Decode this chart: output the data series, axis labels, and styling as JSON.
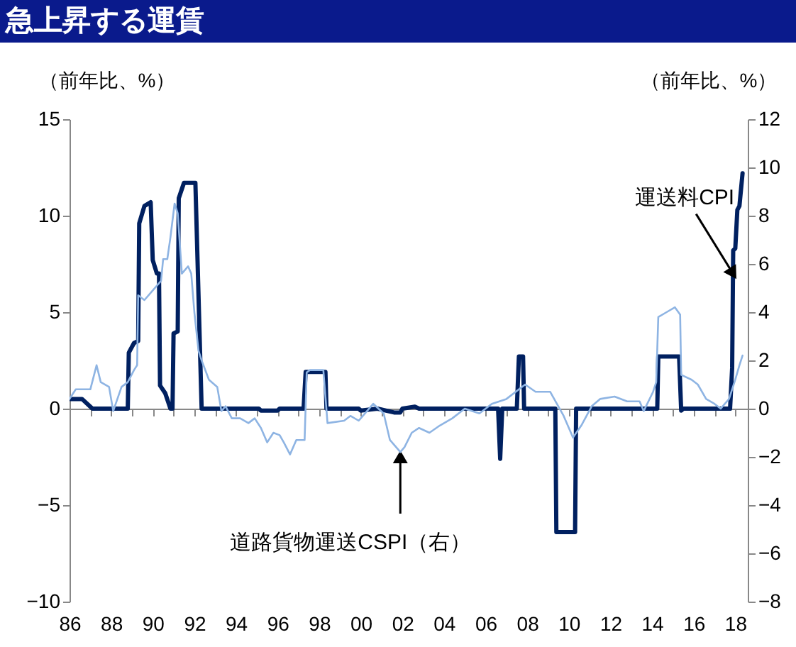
{
  "chart_data": {
    "type": "line",
    "title": "急上昇する運賃",
    "ylabel": "（前年比、%）",
    "y2label": "（前年比、%）",
    "xlim": [
      1986,
      2018.6
    ],
    "xticks": [
      {
        "value": 1986,
        "label": "86"
      },
      {
        "value": 1987,
        "label": null
      },
      {
        "value": 1988,
        "label": "88"
      },
      {
        "value": 1989,
        "label": null
      },
      {
        "value": 1990,
        "label": "90"
      },
      {
        "value": 1991,
        "label": null
      },
      {
        "value": 1992,
        "label": "92"
      },
      {
        "value": 1993,
        "label": null
      },
      {
        "value": 1994,
        "label": "94"
      },
      {
        "value": 1995,
        "label": null
      },
      {
        "value": 1996,
        "label": "96"
      },
      {
        "value": 1997,
        "label": null
      },
      {
        "value": 1998,
        "label": "98"
      },
      {
        "value": 1999,
        "label": null
      },
      {
        "value": 2000,
        "label": "00"
      },
      {
        "value": 2001,
        "label": null
      },
      {
        "value": 2002,
        "label": "02"
      },
      {
        "value": 2003,
        "label": null
      },
      {
        "value": 2004,
        "label": "04"
      },
      {
        "value": 2005,
        "label": null
      },
      {
        "value": 2006,
        "label": "06"
      },
      {
        "value": 2007,
        "label": null
      },
      {
        "value": 2008,
        "label": "08"
      },
      {
        "value": 2009,
        "label": null
      },
      {
        "value": 2010,
        "label": "10"
      },
      {
        "value": 2011,
        "label": null
      },
      {
        "value": 2012,
        "label": "12"
      },
      {
        "value": 2013,
        "label": null
      },
      {
        "value": 2014,
        "label": "14"
      },
      {
        "value": 2015,
        "label": null
      },
      {
        "value": 2016,
        "label": "16"
      },
      {
        "value": 2017,
        "label": null
      },
      {
        "value": 2018,
        "label": "18"
      }
    ],
    "ylim": [
      -10,
      15
    ],
    "yticks": [
      -10,
      -5,
      0,
      5,
      10,
      15
    ],
    "y2lim": [
      -8,
      12
    ],
    "y2ticks": [
      -8,
      -6,
      -4,
      -2,
      0,
      2,
      4,
      6,
      8,
      10,
      12
    ],
    "line_style": "solid",
    "series": [
      {
        "color": "#002060",
        "x": [
          1986.0,
          1986.6,
          1987.1,
          1988.8,
          1988.85,
          1989.1,
          1989.3,
          1989.35,
          1989.6,
          1989.9,
          1990.0,
          1990.2,
          1990.3,
          1990.35,
          1990.6,
          1990.85,
          1990.95,
          1991.0,
          1991.2,
          1991.25,
          1991.5,
          1992.05,
          1992.35,
          1995.1,
          1995.2,
          1996.0,
          1996.1,
          1997.25,
          1997.35,
          1998.3,
          1998.35,
          1999.9,
          2000.0,
          2000.8,
          2001.6,
          2001.9,
          2002.0,
          2002.6,
          2002.8,
          2006.6,
          2006.7,
          2006.8,
          2007.5,
          2007.6,
          2007.8,
          2007.85,
          2009.35,
          2009.4,
          2010.3,
          2010.35,
          2014.25,
          2014.3,
          2015.3,
          2015.4,
          2015.5,
          2017.75,
          2017.85,
          2017.9,
          2018.0,
          2018.1,
          2018.2,
          2018.35
        ],
        "values": [
          0.5,
          0.5,
          0,
          0,
          2.9,
          3.4,
          3.5,
          9.6,
          10.5,
          10.7,
          7.7,
          7.0,
          7.0,
          1.2,
          0.8,
          0,
          0,
          3.9,
          4.0,
          10.9,
          11.7,
          11.7,
          0,
          0,
          -0.1,
          -0.1,
          0,
          0,
          1.9,
          1.9,
          0,
          0,
          -0.1,
          0,
          -0.2,
          -0.2,
          0,
          0.1,
          0,
          0,
          -2.6,
          0,
          0,
          2.7,
          2.7,
          0,
          0,
          -6.4,
          -6.4,
          0,
          0,
          2.7,
          2.7,
          -0.1,
          0,
          0,
          2.1,
          8.2,
          8.3,
          10.3,
          10.5,
          12.2
        ]
      },
      {
        "color": "#8eb4e3",
        "axis": "y2",
        "x": [
          1986.0,
          1986.3,
          1987.0,
          1987.3,
          1987.5,
          1987.9,
          1988.1,
          1988.5,
          1988.8,
          1989.1,
          1989.25,
          1989.3,
          1989.6,
          1990.0,
          1990.4,
          1990.5,
          1990.7,
          1990.85,
          1991.05,
          1991.2,
          1991.4,
          1991.7,
          1991.85,
          1992.0,
          1992.2,
          1992.35,
          1992.7,
          1993.1,
          1993.3,
          1993.5,
          1993.8,
          1994.2,
          1994.6,
          1994.9,
          1995.2,
          1995.5,
          1995.8,
          1996.1,
          1996.3,
          1996.6,
          1996.9,
          1997.3,
          1997.4,
          1997.55,
          1998.2,
          1998.4,
          1999.2,
          1999.5,
          1999.9,
          2000.6,
          2001.1,
          2001.4,
          2001.9,
          2002.1,
          2002.45,
          2002.8,
          2003.3,
          2003.8,
          2004.4,
          2005.0,
          2005.7,
          2006.3,
          2007.0,
          2007.9,
          2008.4,
          2009.1,
          2009.75,
          2010.2,
          2010.6,
          2011.1,
          2011.5,
          2012.2,
          2012.8,
          2013.4,
          2013.6,
          2014.05,
          2014.2,
          2014.3,
          2014.7,
          2015.1,
          2015.35,
          2015.4,
          2015.9,
          2016.2,
          2016.6,
          2017.0,
          2017.3,
          2017.7,
          2018.0,
          2018.2,
          2018.35
        ],
        "values": [
          0.4,
          0.8,
          0.8,
          1.8,
          1.1,
          0.9,
          -0.1,
          0.9,
          1.1,
          1.6,
          1.8,
          4.7,
          4.5,
          4.9,
          5.3,
          6.2,
          6.2,
          7.1,
          8.5,
          8.1,
          5.6,
          5.9,
          5.6,
          4.0,
          2.4,
          2.0,
          1.2,
          0.9,
          -0.1,
          0.1,
          -0.4,
          -0.4,
          -0.6,
          -0.4,
          -0.8,
          -1.4,
          -1.0,
          -1.1,
          -1.4,
          -1.9,
          -1.3,
          -1.3,
          1.5,
          1.6,
          1.6,
          -0.6,
          -0.5,
          -0.3,
          -0.5,
          0.2,
          -0.2,
          -1.3,
          -1.8,
          -1.6,
          -1.0,
          -0.8,
          -1.0,
          -0.7,
          -0.4,
          0,
          -0.2,
          0.2,
          0.4,
          1.0,
          0.7,
          0.7,
          -0.3,
          -1.2,
          -0.7,
          0.1,
          0.4,
          0.5,
          0.3,
          0.3,
          -0.1,
          0.7,
          1.1,
          3.8,
          4.0,
          4.2,
          3.9,
          1.4,
          1.2,
          1.0,
          0.4,
          0.2,
          0,
          0.4,
          1.2,
          1.8,
          2.2
        ]
      }
    ],
    "annotations": [
      {
        "text": "運送料CPI",
        "x": 2017.89,
        "y": 7.0
      },
      {
        "text": "道路貨物運送CSPI（右）",
        "x": 2001.9,
        "y": -2.5
      }
    ]
  }
}
